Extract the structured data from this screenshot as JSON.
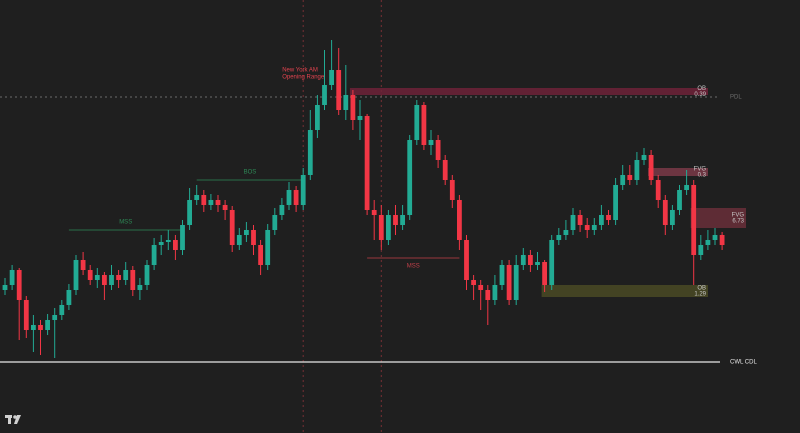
{
  "chart_data": {
    "type": "candlestick",
    "up_color": "#22ab94",
    "down_color": "#f23645",
    "ylim": [
      0,
      400
    ],
    "ohlc": [
      [
        110,
        122,
        105,
        115
      ],
      [
        115,
        135,
        110,
        130
      ],
      [
        130,
        132,
        60,
        100
      ],
      [
        100,
        104,
        62,
        70
      ],
      [
        70,
        85,
        48,
        75
      ],
      [
        75,
        80,
        45,
        70
      ],
      [
        70,
        86,
        65,
        80
      ],
      [
        80,
        92,
        42,
        85
      ],
      [
        85,
        100,
        80,
        95
      ],
      [
        95,
        116,
        90,
        110
      ],
      [
        110,
        145,
        105,
        140
      ],
      [
        140,
        148,
        125,
        130
      ],
      [
        130,
        135,
        115,
        120
      ],
      [
        120,
        132,
        112,
        125
      ],
      [
        125,
        128,
        100,
        115
      ],
      [
        115,
        135,
        110,
        125
      ],
      [
        125,
        130,
        112,
        120
      ],
      [
        120,
        138,
        115,
        130
      ],
      [
        130,
        134,
        104,
        110
      ],
      [
        110,
        122,
        100,
        115
      ],
      [
        115,
        140,
        110,
        135
      ],
      [
        135,
        162,
        130,
        155
      ],
      [
        155,
        165,
        145,
        158
      ],
      [
        158,
        170,
        150,
        160
      ],
      [
        160,
        165,
        140,
        150
      ],
      [
        150,
        180,
        145,
        175
      ],
      [
        175,
        212,
        170,
        200
      ],
      [
        200,
        215,
        195,
        205
      ],
      [
        205,
        210,
        188,
        195
      ],
      [
        195,
        206,
        190,
        200
      ],
      [
        200,
        205,
        188,
        195
      ],
      [
        195,
        200,
        180,
        190
      ],
      [
        190,
        194,
        148,
        155
      ],
      [
        155,
        172,
        150,
        165
      ],
      [
        165,
        178,
        158,
        170
      ],
      [
        170,
        175,
        145,
        155
      ],
      [
        155,
        160,
        125,
        135
      ],
      [
        135,
        176,
        130,
        170
      ],
      [
        170,
        192,
        165,
        185
      ],
      [
        185,
        202,
        180,
        195
      ],
      [
        195,
        218,
        190,
        210
      ],
      [
        210,
        214,
        188,
        195
      ],
      [
        195,
        232,
        190,
        225
      ],
      [
        225,
        290,
        220,
        270
      ],
      [
        270,
        305,
        262,
        295
      ],
      [
        295,
        350,
        290,
        315
      ],
      [
        315,
        360,
        310,
        330
      ],
      [
        330,
        352,
        285,
        290
      ],
      [
        290,
        335,
        280,
        305
      ],
      [
        305,
        310,
        270,
        280
      ],
      [
        280,
        300,
        260,
        284
      ],
      [
        284,
        286,
        185,
        190
      ],
      [
        190,
        200,
        160,
        185
      ],
      [
        185,
        195,
        150,
        160
      ],
      [
        160,
        190,
        155,
        185
      ],
      [
        185,
        195,
        165,
        175
      ],
      [
        175,
        195,
        170,
        185
      ],
      [
        185,
        265,
        180,
        260
      ],
      [
        260,
        300,
        255,
        295
      ],
      [
        295,
        298,
        250,
        255
      ],
      [
        255,
        270,
        245,
        260
      ],
      [
        260,
        265,
        232,
        240
      ],
      [
        240,
        245,
        215,
        220
      ],
      [
        220,
        225,
        192,
        200
      ],
      [
        200,
        205,
        150,
        160
      ],
      [
        160,
        165,
        110,
        120
      ],
      [
        120,
        125,
        100,
        115
      ],
      [
        115,
        120,
        90,
        110
      ],
      [
        110,
        115,
        75,
        100
      ],
      [
        100,
        125,
        95,
        115
      ],
      [
        115,
        140,
        110,
        135
      ],
      [
        135,
        140,
        95,
        100
      ],
      [
        100,
        145,
        95,
        135
      ],
      [
        135,
        152,
        130,
        145
      ],
      [
        145,
        150,
        128,
        135
      ],
      [
        135,
        148,
        130,
        138
      ],
      [
        138,
        140,
        108,
        115
      ],
      [
        115,
        165,
        110,
        160
      ],
      [
        160,
        172,
        155,
        165
      ],
      [
        165,
        180,
        160,
        170
      ],
      [
        170,
        192,
        165,
        185
      ],
      [
        185,
        190,
        168,
        175
      ],
      [
        175,
        182,
        162,
        170
      ],
      [
        170,
        182,
        165,
        175
      ],
      [
        175,
        195,
        170,
        185
      ],
      [
        185,
        190,
        175,
        180
      ],
      [
        180,
        222,
        175,
        215
      ],
      [
        215,
        235,
        210,
        225
      ],
      [
        225,
        235,
        215,
        220
      ],
      [
        220,
        248,
        215,
        240
      ],
      [
        240,
        252,
        235,
        245
      ],
      [
        245,
        250,
        215,
        220
      ],
      [
        220,
        225,
        192,
        200
      ],
      [
        200,
        205,
        165,
        175
      ],
      [
        175,
        195,
        170,
        190
      ],
      [
        190,
        215,
        185,
        210
      ],
      [
        210,
        230,
        205,
        215
      ],
      [
        215,
        220,
        115,
        145
      ],
      [
        145,
        165,
        140,
        155
      ],
      [
        155,
        170,
        150,
        160
      ],
      [
        160,
        172,
        155,
        165
      ],
      [
        165,
        168,
        150,
        155
      ]
    ],
    "levels": [
      {
        "label": "PDL",
        "value": 303,
        "color": "#6b6b6b"
      },
      {
        "label": "CWL CDL",
        "value": 38,
        "color": "#e6e6e6"
      }
    ],
    "structures": [
      {
        "label": "MSS",
        "value": 170,
        "from": 9,
        "to": 25,
        "color": "#2e8b57"
      },
      {
        "label": "BOS",
        "value": 220,
        "from": 27,
        "to": 42,
        "color": "#2e8b57"
      },
      {
        "label": "MSS",
        "value": 142,
        "from": 51,
        "to": 64,
        "color": "#c2404a"
      }
    ],
    "zones": [
      {
        "label": "OB",
        "sub": "0.39",
        "top": 312,
        "bottom": 305,
        "from": 49,
        "color": "#6e2238"
      },
      {
        "label": "FVG",
        "sub": "0.3",
        "top": 232,
        "bottom": 224,
        "from": 91,
        "color": "#7a3a48"
      },
      {
        "label": "FVG",
        "sub": "6.73",
        "top": 192,
        "bottom": 172,
        "from": 97,
        "color": "#6a2f3a"
      },
      {
        "label": "OB",
        "sub": "1.29",
        "top": 115,
        "bottom": 103,
        "from": 76,
        "color": "#4a4a25"
      }
    ],
    "session": {
      "label": [
        "New York AM",
        "Opening Range"
      ],
      "from": 42,
      "to": 53,
      "color": "#e2434f"
    }
  }
}
